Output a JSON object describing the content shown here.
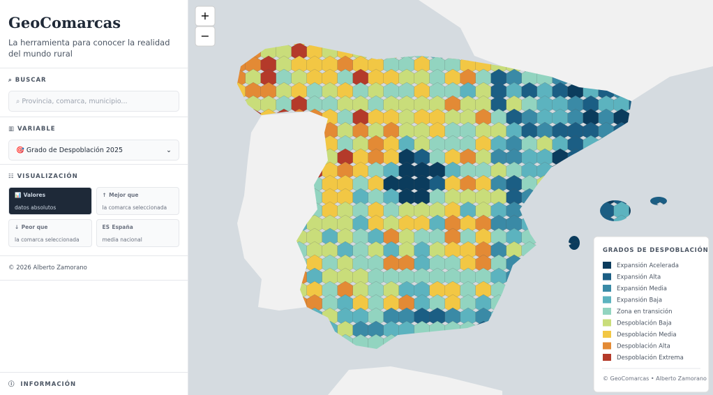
{
  "sidebar": {
    "title": "GeoComarcas",
    "subtitle": "La herramienta para conocer la realidad del mundo rural",
    "search": {
      "heading": "BUSCAR",
      "placeholder": "Provincia, comarca, municipio..."
    },
    "variable": {
      "heading": "VARIABLE",
      "selected": "Grado de Despoblación 2025"
    },
    "visualization": {
      "heading": "VISUALIZACIÓN",
      "options": [
        {
          "icon": "📊",
          "label": "Valores",
          "sublabel": "datos absolutos"
        },
        {
          "icon": "↑",
          "label": "Mejor que",
          "sublabel": "la comarca seleccionada"
        },
        {
          "icon": "↓",
          "label": "Peor que",
          "sublabel": "la comarca seleccionada"
        },
        {
          "icon": "ES",
          "label": "España",
          "sublabel": "media nacional"
        }
      ]
    },
    "copyright": "© 2026 Alberto Zamorano",
    "info": "INFORMACIÓN"
  },
  "map": {
    "zoom_in": "+",
    "zoom_out": "−",
    "legend": {
      "title": "GRADOS DE DESPOBLACIÓN",
      "items": [
        {
          "label": "Expansión Acelerada",
          "color": "#0b3c5d"
        },
        {
          "label": "Expansión Alta",
          "color": "#1b5e84"
        },
        {
          "label": "Expansión Media",
          "color": "#3a8aa6"
        },
        {
          "label": "Expansión Baja",
          "color": "#5cb3bf"
        },
        {
          "label": "Zona en transición",
          "color": "#92d4c0"
        },
        {
          "label": "Despoblación Baja",
          "color": "#c9dd7a"
        },
        {
          "label": "Despoblación Media",
          "color": "#f2c744"
        },
        {
          "label": "Despoblación Alta",
          "color": "#e38a35"
        },
        {
          "label": "Despoblación Extrema",
          "color": "#b43a2a"
        }
      ],
      "credit": "© GeoComarcas • Alberto Zamorano"
    }
  }
}
